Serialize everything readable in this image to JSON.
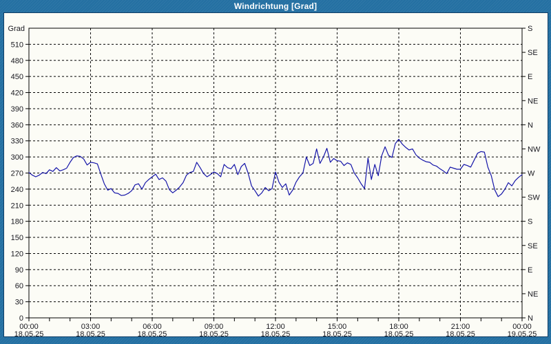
{
  "window": {
    "title": "Windrichtung [Grad]"
  },
  "colors": {
    "titlebar_bg": "#2470a2",
    "frame_border": "#0e3c64",
    "panel_bg": "#fcfcf6",
    "grid": "#000000",
    "line": "#1414a8",
    "label_text": "#18181f",
    "title_text": "#ffffff"
  },
  "chart_data": {
    "type": "line",
    "title": "Windrichtung [Grad]",
    "ylabel": "Grad",
    "ylim": [
      0,
      540
    ],
    "x_range_minutes": [
      0,
      1440
    ],
    "grid": "dashed",
    "left_axis": {
      "unit_label": "Grad",
      "tick_values": [
        0,
        30,
        60,
        90,
        120,
        150,
        180,
        210,
        240,
        270,
        300,
        330,
        360,
        390,
        420,
        450,
        480,
        510
      ]
    },
    "right_axis": {
      "ticks": [
        {
          "value": 0,
          "label": "N"
        },
        {
          "value": 45,
          "label": "NE"
        },
        {
          "value": 90,
          "label": "E"
        },
        {
          "value": 135,
          "label": "SE"
        },
        {
          "value": 180,
          "label": "S"
        },
        {
          "value": 225,
          "label": "SW"
        },
        {
          "value": 270,
          "label": "W"
        },
        {
          "value": 315,
          "label": "NW"
        },
        {
          "value": 360,
          "label": "N"
        },
        {
          "value": 405,
          "label": "NE"
        },
        {
          "value": 450,
          "label": "E"
        },
        {
          "value": 495,
          "label": "SE"
        },
        {
          "value": 540,
          "label": "S"
        }
      ]
    },
    "x_axis": {
      "minor_tick_hours": 1,
      "major_ticks": [
        {
          "hour": 0,
          "time": "00:00",
          "date": "18.05.25"
        },
        {
          "hour": 3,
          "time": "03:00",
          "date": "18.05.25"
        },
        {
          "hour": 6,
          "time": "06:00",
          "date": "18.05.25"
        },
        {
          "hour": 9,
          "time": "09:00",
          "date": "18.05.25"
        },
        {
          "hour": 12,
          "time": "12:00",
          "date": "18.05.25"
        },
        {
          "hour": 15,
          "time": "15:00",
          "date": "18.05.25"
        },
        {
          "hour": 18,
          "time": "18:00",
          "date": "18.05.25"
        },
        {
          "hour": 21,
          "time": "21:00",
          "date": "18.05.25"
        },
        {
          "hour": 24,
          "time": "00:00",
          "date": "19.05.25"
        }
      ]
    },
    "series": [
      {
        "name": "Windrichtung",
        "color": "#1414a8",
        "points": [
          [
            0,
            271
          ],
          [
            10,
            266
          ],
          [
            20,
            263
          ],
          [
            30,
            266
          ],
          [
            40,
            271
          ],
          [
            50,
            269
          ],
          [
            60,
            276
          ],
          [
            70,
            273
          ],
          [
            80,
            280
          ],
          [
            90,
            274
          ],
          [
            100,
            276
          ],
          [
            110,
            279
          ],
          [
            120,
            290
          ],
          [
            130,
            299
          ],
          [
            140,
            302
          ],
          [
            150,
            301
          ],
          [
            160,
            296
          ],
          [
            170,
            285
          ],
          [
            180,
            290
          ],
          [
            190,
            289
          ],
          [
            200,
            287
          ],
          [
            210,
            268
          ],
          [
            220,
            250
          ],
          [
            230,
            238
          ],
          [
            240,
            241
          ],
          [
            250,
            233
          ],
          [
            260,
            232
          ],
          [
            270,
            228
          ],
          [
            280,
            229
          ],
          [
            290,
            232
          ],
          [
            300,
            237
          ],
          [
            310,
            248
          ],
          [
            320,
            250
          ],
          [
            330,
            240
          ],
          [
            340,
            252
          ],
          [
            350,
            258
          ],
          [
            360,
            263
          ],
          [
            370,
            268
          ],
          [
            380,
            258
          ],
          [
            390,
            261
          ],
          [
            400,
            255
          ],
          [
            410,
            239
          ],
          [
            420,
            233
          ],
          [
            430,
            238
          ],
          [
            440,
            244
          ],
          [
            450,
            252
          ],
          [
            460,
            266
          ],
          [
            470,
            271
          ],
          [
            480,
            273
          ],
          [
            490,
            290
          ],
          [
            500,
            280
          ],
          [
            510,
            269
          ],
          [
            520,
            263
          ],
          [
            530,
            267
          ],
          [
            540,
            272
          ],
          [
            550,
            269
          ],
          [
            560,
            263
          ],
          [
            570,
            286
          ],
          [
            580,
            280
          ],
          [
            590,
            278
          ],
          [
            600,
            286
          ],
          [
            610,
            267
          ],
          [
            620,
            282
          ],
          [
            630,
            288
          ],
          [
            640,
            270
          ],
          [
            650,
            246
          ],
          [
            660,
            237
          ],
          [
            670,
            227
          ],
          [
            680,
            233
          ],
          [
            690,
            243
          ],
          [
            700,
            237
          ],
          [
            710,
            241
          ],
          [
            720,
            272
          ],
          [
            730,
            253
          ],
          [
            740,
            243
          ],
          [
            750,
            250
          ],
          [
            760,
            229
          ],
          [
            770,
            238
          ],
          [
            780,
            253
          ],
          [
            790,
            263
          ],
          [
            800,
            270
          ],
          [
            810,
            300
          ],
          [
            820,
            284
          ],
          [
            830,
            288
          ],
          [
            840,
            315
          ],
          [
            850,
            288
          ],
          [
            860,
            300
          ],
          [
            870,
            316
          ],
          [
            880,
            290
          ],
          [
            890,
            297
          ],
          [
            900,
            293
          ],
          [
            910,
            292
          ],
          [
            920,
            284
          ],
          [
            930,
            289
          ],
          [
            940,
            286
          ],
          [
            950,
            270
          ],
          [
            960,
            261
          ],
          [
            970,
            250
          ],
          [
            980,
            241
          ],
          [
            990,
            298
          ],
          [
            1000,
            258
          ],
          [
            1010,
            286
          ],
          [
            1020,
            265
          ],
          [
            1030,
            302
          ],
          [
            1040,
            319
          ],
          [
            1050,
            303
          ],
          [
            1060,
            299
          ],
          [
            1070,
            325
          ],
          [
            1080,
            333
          ],
          [
            1090,
            324
          ],
          [
            1100,
            318
          ],
          [
            1110,
            313
          ],
          [
            1120,
            315
          ],
          [
            1130,
            304
          ],
          [
            1140,
            298
          ],
          [
            1150,
            294
          ],
          [
            1160,
            291
          ],
          [
            1170,
            290
          ],
          [
            1180,
            285
          ],
          [
            1190,
            283
          ],
          [
            1200,
            278
          ],
          [
            1210,
            274
          ],
          [
            1220,
            269
          ],
          [
            1230,
            281
          ],
          [
            1240,
            279
          ],
          [
            1250,
            277
          ],
          [
            1260,
            277
          ],
          [
            1270,
            286
          ],
          [
            1280,
            284
          ],
          [
            1290,
            281
          ],
          [
            1300,
            294
          ],
          [
            1310,
            307
          ],
          [
            1320,
            310
          ],
          [
            1330,
            309
          ],
          [
            1340,
            281
          ],
          [
            1350,
            265
          ],
          [
            1360,
            239
          ],
          [
            1370,
            226
          ],
          [
            1380,
            231
          ],
          [
            1390,
            240
          ],
          [
            1400,
            252
          ],
          [
            1410,
            246
          ],
          [
            1420,
            256
          ],
          [
            1430,
            262
          ],
          [
            1440,
            267
          ]
        ]
      }
    ]
  }
}
